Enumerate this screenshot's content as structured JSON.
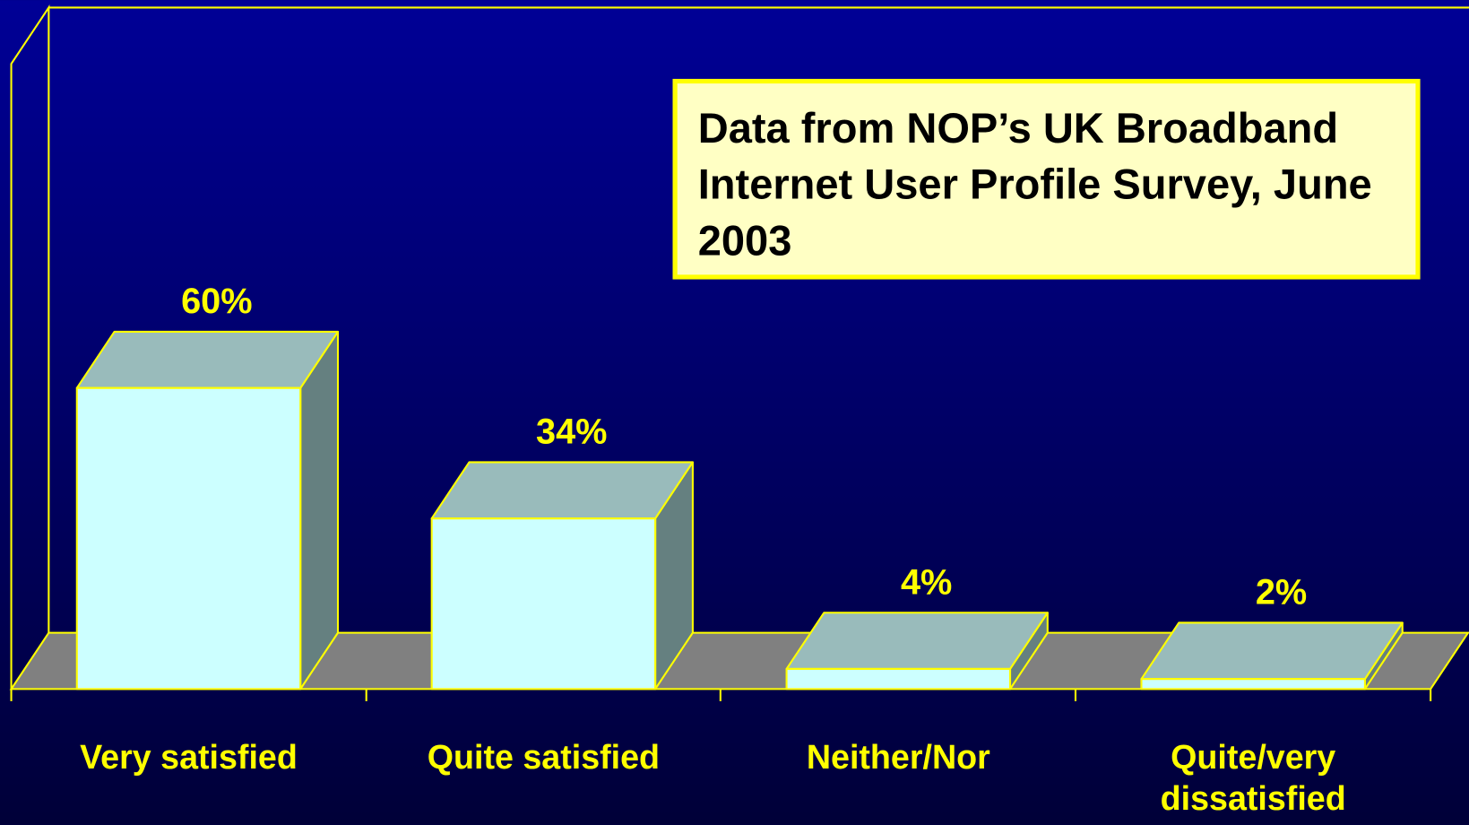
{
  "chart_data": {
    "type": "bar3d",
    "annotation": "Data from NOP’s UK Broadband Internet User Profile Survey, June 2003",
    "categories": [
      "Very satisfied",
      "Quite satisfied",
      "Neither/Nor",
      "Quite/very dissatisfied"
    ],
    "values": [
      60,
      34,
      4,
      2
    ],
    "value_labels": [
      "60%",
      "34%",
      "4%",
      "2%"
    ],
    "color": "#ccffff",
    "ylim": [
      0,
      125
    ]
  }
}
